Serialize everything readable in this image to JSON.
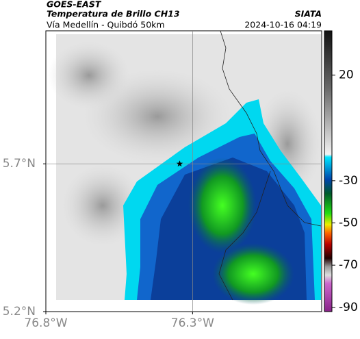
{
  "header": {
    "agency": "GOES-EAST",
    "title": "Temperatura de Brillo CH13",
    "source": "SIATA",
    "subtitle": "Vía Medellín - Quibdó 50km",
    "datetime": "2024-10-16 04:19"
  },
  "map": {
    "xlim": [
      -76.8,
      -75.86
    ],
    "ylim": [
      5.2,
      6.15
    ],
    "xticks": [
      {
        "value": -76.8,
        "label": "76.8°W"
      },
      {
        "value": -76.3,
        "label": "76.3°W"
      }
    ],
    "yticks": [
      {
        "value": 5.2,
        "label": "5.2°N"
      },
      {
        "value": 5.7,
        "label": "5.7°N"
      }
    ],
    "marker": {
      "lon": -76.344,
      "lat": 5.7
    },
    "grid": true
  },
  "colorbar": {
    "clim": [
      -92,
      41
    ],
    "ticks": [
      20,
      -30,
      -50,
      -70,
      -90
    ]
  }
}
